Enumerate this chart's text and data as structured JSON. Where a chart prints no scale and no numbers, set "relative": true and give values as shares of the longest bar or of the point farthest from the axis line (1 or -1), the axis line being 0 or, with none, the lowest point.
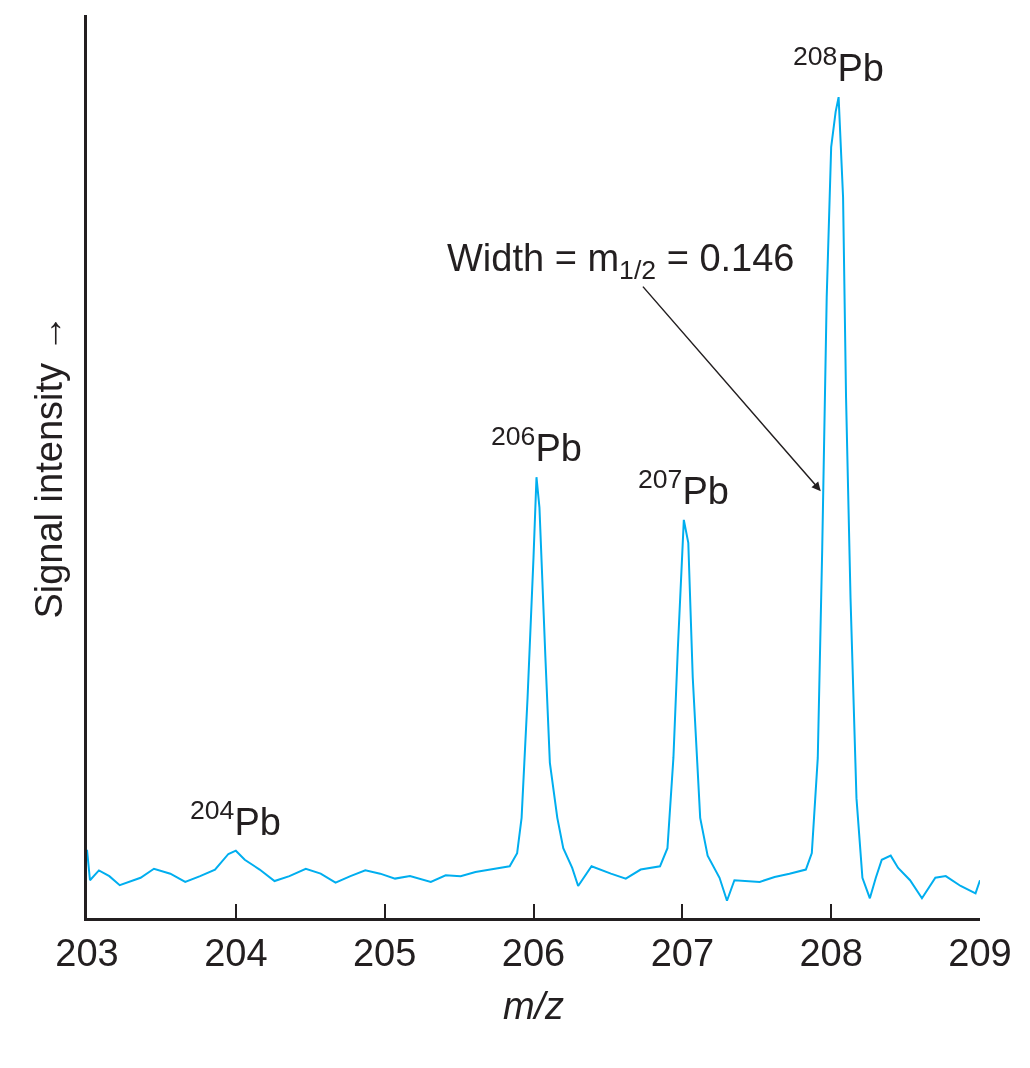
{
  "chart_data": {
    "type": "line",
    "relative": true,
    "xlabel": "m/z",
    "ylabel": "Signal intensity →",
    "x": [
      203.0,
      203.02,
      203.08,
      203.15,
      203.22,
      203.36,
      203.45,
      203.56,
      203.66,
      203.76,
      203.86,
      203.95,
      204.0,
      204.06,
      204.16,
      204.26,
      204.36,
      204.47,
      204.57,
      204.67,
      204.77,
      204.87,
      204.97,
      205.07,
      205.17,
      205.31,
      205.41,
      205.51,
      205.61,
      205.71,
      205.84,
      205.89,
      205.92,
      205.96,
      206.0,
      206.02,
      206.04,
      206.08,
      206.11,
      206.16,
      206.2,
      206.26,
      206.3,
      206.39,
      206.52,
      206.62,
      206.72,
      206.85,
      206.9,
      206.94,
      206.97,
      207.01,
      207.04,
      207.07,
      207.12,
      207.17,
      207.25,
      207.3,
      207.35,
      207.52,
      207.62,
      207.72,
      207.83,
      207.87,
      207.91,
      207.94,
      207.97,
      208.0,
      208.03,
      208.05,
      208.08,
      208.1,
      208.13,
      208.17,
      208.21,
      208.26,
      208.3,
      208.34,
      208.4,
      208.45,
      208.53,
      208.61,
      208.7,
      208.77,
      208.87,
      208.97,
      209.0
    ],
    "series": [
      {
        "color": "#00aeef",
        "values": [
          0.083,
          0.046,
          0.058,
          0.051,
          0.04,
          0.049,
          0.06,
          0.054,
          0.044,
          0.051,
          0.059,
          0.078,
          0.082,
          0.071,
          0.059,
          0.045,
          0.051,
          0.06,
          0.054,
          0.043,
          0.051,
          0.058,
          0.054,
          0.048,
          0.051,
          0.044,
          0.052,
          0.051,
          0.056,
          0.059,
          0.063,
          0.079,
          0.122,
          0.268,
          0.439,
          0.537,
          0.5,
          0.317,
          0.189,
          0.122,
          0.085,
          0.061,
          0.039,
          0.063,
          0.054,
          0.048,
          0.059,
          0.063,
          0.085,
          0.195,
          0.329,
          0.485,
          0.457,
          0.293,
          0.122,
          0.076,
          0.049,
          0.021,
          0.046,
          0.044,
          0.05,
          0.054,
          0.059,
          0.079,
          0.195,
          0.451,
          0.756,
          0.939,
          0.982,
          1.0,
          0.878,
          0.634,
          0.39,
          0.146,
          0.049,
          0.024,
          0.049,
          0.071,
          0.076,
          0.061,
          0.046,
          0.024,
          0.049,
          0.051,
          0.039,
          0.03,
          0.046
        ]
      }
    ],
    "xlim": [
      203,
      209
    ],
    "xticks": [
      203,
      204,
      205,
      206,
      207,
      208,
      209
    ],
    "grid": false,
    "annotations": [
      {
        "text": "$^{204}$Pb",
        "x": 204.0,
        "y": 0.082
      },
      {
        "text": "$^{206}$Pb",
        "x": 206.02,
        "y": 0.537
      },
      {
        "text": "$^{207}$Pb",
        "x": 207.01,
        "y": 0.485
      },
      {
        "text": "$^{208}$Pb",
        "x": 208.05,
        "y": 1.0
      },
      {
        "text": "Width = m$_{1/2}$ = 0.146",
        "x": 207.93,
        "y": 0.52
      }
    ]
  }
}
